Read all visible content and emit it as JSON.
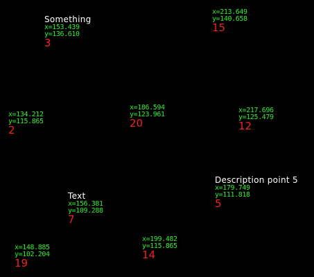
{
  "points": [
    {
      "label": "Something",
      "x": "x=153.439",
      "y": "y=136.610",
      "id": "3"
    },
    {
      "x": "x=213.649",
      "y": "y=140.658",
      "id": "15"
    },
    {
      "x": "x=134.212",
      "y": "y=115.865",
      "id": "2"
    },
    {
      "x": "x=186.594",
      "y": "y=123.961",
      "id": "20"
    },
    {
      "x": "x=217.696",
      "y": "y=125.479",
      "id": "12"
    },
    {
      "label": "Description point 5",
      "x": "x=179.749",
      "y": "y=111.818",
      "id": "5"
    },
    {
      "label": "Text",
      "x": "x=156.381",
      "y": "y=109.288",
      "id": "7"
    },
    {
      "x": "x=148.885",
      "y": "y=102.204",
      "id": "19"
    },
    {
      "x": "x=199.482",
      "y": "y=115.865",
      "id": "14"
    }
  ]
}
